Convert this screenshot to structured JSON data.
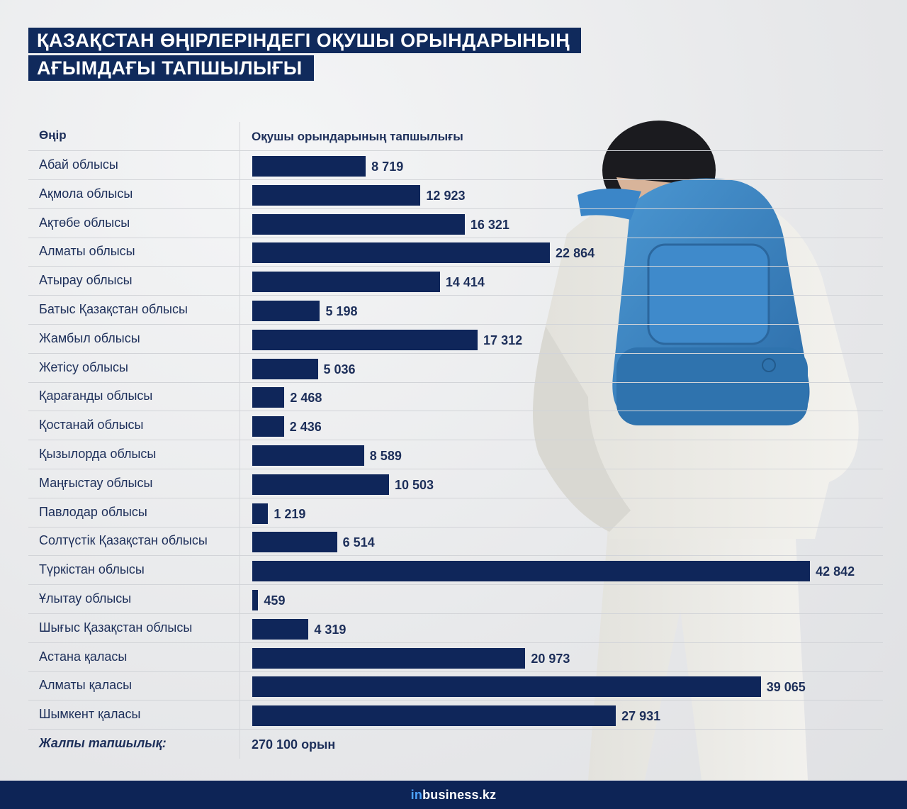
{
  "title": {
    "line1": "ҚАЗАҚСТАН ӨҢІРЛЕРІНДЕГІ ОҚУШЫ ОРЫНДАРЫНЫҢ",
    "line2": "АҒЫМДАҒЫ ТАПШЫЛЫҒЫ"
  },
  "table": {
    "col_region": "Өңір",
    "col_value": "Оқушы орындарының тапшылығы",
    "total_label": "Жалпы тапшылық:",
    "total_value": "270 100 орын"
  },
  "chart_data": {
    "type": "bar",
    "orientation": "horizontal",
    "categories": [
      "Абай облысы",
      "Ақмола облысы",
      "Ақтөбе облысы",
      "Алматы облысы",
      "Атырау облысы",
      "Батыс Қазақстан облысы",
      "Жамбыл облысы",
      "Жетісу облысы",
      "Қарағанды облысы",
      "Қостанай облысы",
      "Қызылорда облысы",
      "Маңғыстау облысы",
      "Павлодар облысы",
      "Солтүстік Қазақстан облысы",
      "Түркістан облысы",
      "Ұлытау облысы",
      "Шығыс Қазақстан облысы",
      "Астана қаласы",
      "Алматы қаласы",
      "Шымкент қаласы"
    ],
    "values": [
      8719,
      12923,
      16321,
      22864,
      14414,
      5198,
      17312,
      5036,
      2468,
      2436,
      8589,
      10503,
      1219,
      6514,
      42842,
      459,
      4319,
      20973,
      39065,
      27931
    ],
    "value_labels": [
      "8 719",
      "12 923",
      "16 321",
      "22 864",
      "14 414",
      "5 198",
      "17 312",
      "5 036",
      "2 468",
      "2 436",
      "8 589",
      "10 503",
      "1 219",
      "6 514",
      "42 842",
      "459",
      "4 319",
      "20 973",
      "39 065",
      "27 931"
    ],
    "xlim": [
      0,
      43000
    ],
    "bar_color": "#0f265a",
    "grid": false
  },
  "footer": {
    "brand_prefix": "in",
    "brand_rest": "business.kz"
  },
  "colors": {
    "accent": "#0f265a",
    "backpack": "#3a86c6"
  }
}
